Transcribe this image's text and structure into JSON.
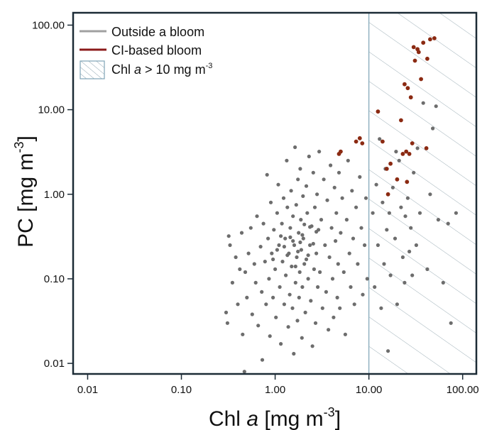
{
  "colors": {
    "outside": "#6d6d6d",
    "bloom": "#8b2a12",
    "region_stroke": "#7ea4b6",
    "frame": "#1c2b36"
  },
  "chart_data": {
    "type": "scatter",
    "x_scale": "log",
    "y_scale": "log",
    "xlim": [
      0.007,
      140
    ],
    "ylim": [
      0.0075,
      140
    ],
    "x_ticks": [
      {
        "value": 0.01,
        "label": "0.01"
      },
      {
        "value": 0.1,
        "label": "0.10"
      },
      {
        "value": 1,
        "label": "1.00"
      },
      {
        "value": 10,
        "label": "10.00"
      },
      {
        "value": 100,
        "label": "100.00"
      }
    ],
    "y_ticks": [
      {
        "value": 0.01,
        "label": "0.01"
      },
      {
        "value": 0.1,
        "label": "0.10"
      },
      {
        "value": 1,
        "label": "1.00"
      },
      {
        "value": 10,
        "label": "10.00"
      },
      {
        "value": 100,
        "label": "100.00"
      }
    ],
    "xlabel_parts": {
      "pre": "Chl ",
      "italic": "a",
      "post": " [mg m",
      "sup": "-3",
      "end": "]"
    },
    "ylabel_parts": {
      "pre": "PC [mg m",
      "sup": "-3",
      "end": "]"
    },
    "legend": {
      "placement": "top-left",
      "items": [
        {
          "label": "Outside a bloom",
          "kind": "line",
          "color": "#a0a0a0"
        },
        {
          "label": "CI-based bloom",
          "kind": "line",
          "color": "#8b1a1a"
        },
        {
          "label_parts": {
            "pre": "Chl ",
            "italic": "a",
            "post": " > 10 mg m",
            "sup": "-3"
          },
          "kind": "hatch"
        }
      ]
    },
    "highlight_region": {
      "x_min": 10,
      "x_max": 140
    },
    "series": [
      {
        "name": "Outside a bloom",
        "color": "#6d6d6d",
        "points": [
          [
            0.32,
            0.32
          ],
          [
            0.33,
            0.25
          ],
          [
            0.3,
            0.04
          ],
          [
            0.31,
            0.03
          ],
          [
            0.35,
            0.09
          ],
          [
            0.38,
            0.18
          ],
          [
            0.4,
            0.05
          ],
          [
            0.42,
            0.13
          ],
          [
            0.44,
            0.35
          ],
          [
            0.45,
            0.022
          ],
          [
            0.47,
            0.008
          ],
          [
            0.48,
            0.12
          ],
          [
            0.5,
            0.06
          ],
          [
            0.52,
            0.2
          ],
          [
            0.55,
            0.4
          ],
          [
            0.57,
            0.038
          ],
          [
            0.6,
            0.15
          ],
          [
            0.62,
            0.09
          ],
          [
            0.64,
            0.55
          ],
          [
            0.66,
            0.028
          ],
          [
            0.7,
            0.24
          ],
          [
            0.72,
            0.07
          ],
          [
            0.73,
            0.011
          ],
          [
            0.75,
            0.45
          ],
          [
            0.78,
            0.16
          ],
          [
            0.8,
            0.05
          ],
          [
            0.82,
            1.7
          ],
          [
            0.84,
            0.3
          ],
          [
            0.86,
            0.1
          ],
          [
            0.88,
            0.021
          ],
          [
            0.9,
            0.8
          ],
          [
            0.92,
            0.2
          ],
          [
            0.95,
            0.06
          ],
          [
            0.97,
            0.38
          ],
          [
            1.0,
            0.13
          ],
          [
            1.02,
            0.035
          ],
          [
            1.05,
            0.6
          ],
          [
            1.08,
            1.3
          ],
          [
            1.1,
            0.25
          ],
          [
            1.12,
            0.08
          ],
          [
            1.15,
            0.017
          ],
          [
            1.18,
            0.45
          ],
          [
            1.2,
            0.16
          ],
          [
            1.23,
            0.9
          ],
          [
            1.25,
            0.05
          ],
          [
            1.28,
            0.3
          ],
          [
            1.3,
            0.11
          ],
          [
            1.33,
            2.5
          ],
          [
            1.35,
            0.7
          ],
          [
            1.38,
            0.027
          ],
          [
            1.4,
            0.2
          ],
          [
            1.43,
            0.065
          ],
          [
            1.45,
            0.4
          ],
          [
            1.48,
            1.1
          ],
          [
            1.5,
            0.14
          ],
          [
            1.53,
            0.045
          ],
          [
            1.55,
            0.55
          ],
          [
            1.58,
            0.013
          ],
          [
            1.6,
            0.25
          ],
          [
            1.63,
            3.6
          ],
          [
            1.65,
            0.09
          ],
          [
            1.68,
            0.75
          ],
          [
            1.7,
            0.18
          ],
          [
            1.73,
            0.032
          ],
          [
            1.75,
            1.5
          ],
          [
            1.78,
            0.35
          ],
          [
            1.8,
            0.06
          ],
          [
            1.83,
            0.12
          ],
          [
            1.85,
            2.0
          ],
          [
            1.88,
            0.5
          ],
          [
            1.9,
            0.22
          ],
          [
            1.93,
            0.02
          ],
          [
            1.95,
            0.08
          ],
          [
            1.98,
            0.95
          ],
          [
            2.0,
            0.3
          ],
          [
            2.05,
            0.15
          ],
          [
            2.1,
            0.04
          ],
          [
            2.15,
            1.25
          ],
          [
            2.2,
            0.6
          ],
          [
            2.25,
            0.1
          ],
          [
            2.3,
            2.8
          ],
          [
            2.35,
            0.25
          ],
          [
            2.4,
            0.055
          ],
          [
            2.45,
            0.42
          ],
          [
            2.5,
            0.016
          ],
          [
            2.55,
            1.8
          ],
          [
            2.6,
            0.13
          ],
          [
            2.65,
            0.7
          ],
          [
            2.7,
            0.03
          ],
          [
            2.75,
            0.2
          ],
          [
            2.8,
            1.0
          ],
          [
            2.85,
            0.08
          ],
          [
            2.9,
            0.38
          ],
          [
            2.95,
            3.2
          ],
          [
            3.0,
            0.12
          ],
          [
            3.1,
            0.5
          ],
          [
            3.2,
            0.045
          ],
          [
            3.3,
            1.5
          ],
          [
            3.4,
            0.25
          ],
          [
            3.5,
            0.07
          ],
          [
            3.6,
            0.85
          ],
          [
            3.7,
            0.025
          ],
          [
            3.8,
            0.18
          ],
          [
            3.9,
            2.2
          ],
          [
            4.0,
            0.4
          ],
          [
            4.1,
            0.1
          ],
          [
            4.2,
            0.035
          ],
          [
            4.3,
            1.2
          ],
          [
            4.4,
            0.28
          ],
          [
            4.5,
            0.6
          ],
          [
            4.6,
            0.06
          ],
          [
            4.7,
            0.15
          ],
          [
            4.8,
            1.8
          ],
          [
            4.9,
            0.045
          ],
          [
            5.0,
            0.35
          ],
          [
            5.2,
            0.9
          ],
          [
            5.4,
            0.12
          ],
          [
            5.6,
            0.022
          ],
          [
            5.8,
            0.5
          ],
          [
            6.0,
            2.5
          ],
          [
            6.2,
            0.2
          ],
          [
            6.4,
            0.08
          ],
          [
            6.6,
            1.1
          ],
          [
            6.8,
            0.3
          ],
          [
            7.0,
            0.05
          ],
          [
            7.3,
            0.7
          ],
          [
            7.6,
            0.15
          ],
          [
            8.0,
            1.6
          ],
          [
            8.3,
            0.4
          ],
          [
            8.6,
            0.065
          ],
          [
            9.0,
            0.25
          ],
          [
            9.3,
            0.9
          ],
          [
            9.6,
            0.1
          ],
          [
            1.05,
            0.22
          ],
          [
            1.15,
            0.32
          ],
          [
            1.35,
            0.19
          ],
          [
            1.55,
            0.28
          ],
          [
            1.75,
            0.21
          ],
          [
            1.95,
            0.33
          ],
          [
            2.15,
            0.17
          ],
          [
            2.35,
            0.41
          ],
          [
            2.55,
            0.26
          ],
          [
            2.75,
            0.36
          ],
          [
            0.95,
            0.17
          ],
          [
            1.25,
            0.24
          ],
          [
            1.45,
            0.31
          ],
          [
            1.65,
            0.14
          ],
          [
            1.85,
            0.27
          ],
          [
            2.05,
            0.44
          ],
          [
            2.25,
            0.19
          ],
          [
            11,
            0.6
          ],
          [
            11.5,
            0.08
          ],
          [
            12,
            1.3
          ],
          [
            12.5,
            0.25
          ],
          [
            13,
            4.5
          ],
          [
            13.5,
            0.045
          ],
          [
            14,
            0.8
          ],
          [
            14.5,
            0.15
          ],
          [
            15,
            2.0
          ],
          [
            15.5,
            0.38
          ],
          [
            16,
            0.014
          ],
          [
            16.5,
            0.6
          ],
          [
            17,
            0.11
          ],
          [
            18,
            1.2
          ],
          [
            19,
            0.3
          ],
          [
            20,
            0.05
          ],
          [
            21,
            2.5
          ],
          [
            22,
            0.7
          ],
          [
            23,
            0.18
          ],
          [
            24,
            0.09
          ],
          [
            26,
            0.9
          ],
          [
            28,
            0.4
          ],
          [
            30,
            1.8
          ],
          [
            32,
            0.25
          ],
          [
            35,
            0.6
          ],
          [
            38,
            12
          ],
          [
            42,
            0.13
          ],
          [
            48,
            6
          ],
          [
            55,
            0.5
          ],
          [
            62,
            0.09
          ],
          [
            70,
            0.45
          ],
          [
            75,
            0.03
          ],
          [
            85,
            0.6
          ],
          [
            52,
            11
          ],
          [
            45,
            1.0
          ],
          [
            33,
            3.5
          ],
          [
            27,
            0.21
          ],
          [
            19.5,
            3.2
          ],
          [
            29,
            0.11
          ],
          [
            24.5,
            0.55
          ]
        ]
      },
      {
        "name": "CI-based bloom",
        "color": "#8b2a12",
        "points": [
          [
            4.8,
            3.0
          ],
          [
            5.0,
            3.2
          ],
          [
            7.3,
            4.2
          ],
          [
            8.0,
            4.6
          ],
          [
            8.5,
            4.0
          ],
          [
            12.5,
            9.5
          ],
          [
            14,
            4.2
          ],
          [
            15.5,
            2.0
          ],
          [
            17,
            2.3
          ],
          [
            20,
            1.5
          ],
          [
            22,
            7.5
          ],
          [
            23,
            3.0
          ],
          [
            24,
            20
          ],
          [
            25,
            3.2
          ],
          [
            26,
            18
          ],
          [
            27,
            3.0
          ],
          [
            28,
            14
          ],
          [
            29,
            4.0
          ],
          [
            30,
            55
          ],
          [
            31,
            38
          ],
          [
            34,
            48
          ],
          [
            36,
            23
          ],
          [
            38,
            62
          ],
          [
            42,
            40
          ],
          [
            45,
            68
          ],
          [
            16,
            1.0
          ],
          [
            25.5,
            1.4
          ],
          [
            41,
            3.5
          ],
          [
            50,
            70
          ],
          [
            33,
            52
          ]
        ]
      }
    ]
  }
}
